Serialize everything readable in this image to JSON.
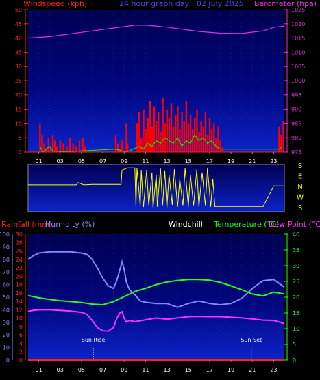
{
  "header": {
    "windspeed_label": "Windspeed (kph)",
    "title": "24 hour graph day : 02 July 2025",
    "barometer_label": "Barometer (hpa)"
  },
  "lower_header": {
    "rainfall_label": "Rainfall (mm)",
    "humidity_label": "Humidity (%)",
    "windchill_label": "Windchill",
    "temperature_label": "Temperature (°C)",
    "dewpoint_label": "Dew Point (°C)"
  },
  "annotations": {
    "sunrise": "Sun Rise",
    "sunset": "Sun Set"
  },
  "colors": {
    "windspeed": "#ff0000",
    "gust": "#00ff00",
    "direction": "#ffff00",
    "barometer": "#dd33dd",
    "humidity": "#8888ff",
    "temperature": "#22ff22",
    "dewpoint": "#ff33ff",
    "rainfall": "#ff2020",
    "axis_red": "#ff2020",
    "axis_violet": "#8888ff",
    "axis_green": "#22ff22",
    "background_top": "#000066",
    "background_bottom": "#0a1bb8"
  },
  "chart_data": [
    {
      "type": "line",
      "id": "wind-pressure",
      "x_ticks": [
        "01",
        "03",
        "05",
        "07",
        "09",
        "11",
        "13",
        "15",
        "17",
        "19",
        "21",
        "23"
      ],
      "x_range_hours": [
        0,
        24
      ],
      "left_axis": {
        "ticks": [
          "0",
          "5",
          "10",
          "15",
          "20",
          "25",
          "30",
          "35",
          "40",
          "45",
          "50"
        ],
        "ylim": [
          0,
          50
        ]
      },
      "right_axis": {
        "ticks": [
          "975",
          "980",
          "985",
          "990",
          "995",
          "1000",
          "1005",
          "1010",
          "1015",
          "1020",
          "1025"
        ],
        "ylim": [
          975,
          1025
        ]
      },
      "series": [
        {
          "key": "barometer",
          "axis": "right",
          "x": [
            0,
            2,
            4,
            6,
            8,
            10,
            11,
            12,
            13,
            14,
            16,
            18,
            20,
            22,
            23,
            24
          ],
          "y": [
            1015,
            1015.5,
            1016.5,
            1017.5,
            1018.5,
            1019.5,
            1019.5,
            1019.2,
            1018.8,
            1018.3,
            1017.3,
            1016.7,
            1016.6,
            1017.5,
            1018.7,
            1019.2
          ]
        },
        {
          "key": "windspeed",
          "axis": "left",
          "x": [
            1.1,
            1.3,
            1.5,
            1.7,
            1.9,
            2.1,
            2.3,
            2.5,
            2.7,
            3.0,
            3.3,
            3.6,
            3.9,
            4.2,
            4.5,
            4.8,
            5.1,
            5.3,
            8.2,
            8.4,
            8.6,
            8.8,
            9.2,
            9.3,
            10.2,
            10.4,
            10.6,
            10.8,
            11.0,
            11.2,
            11.4,
            11.6,
            11.8,
            12.0,
            12.2,
            12.4,
            12.6,
            12.8,
            13.0,
            13.2,
            13.4,
            13.6,
            13.8,
            14.0,
            14.2,
            14.4,
            14.6,
            14.8,
            15.0,
            15.2,
            15.4,
            15.6,
            15.8,
            16.0,
            16.2,
            16.4,
            16.6,
            16.8,
            17.0,
            17.2,
            17.4,
            17.6,
            17.8,
            18.0,
            18.2,
            23.5,
            23.7,
            23.9
          ],
          "y": [
            10,
            6,
            3,
            1,
            5,
            2,
            6,
            4,
            2,
            4,
            3,
            2,
            5,
            3,
            2,
            4,
            5,
            2,
            6,
            3,
            1,
            4,
            10,
            3,
            10,
            14,
            5,
            15,
            8,
            12,
            18,
            9,
            16,
            11,
            14,
            7,
            19,
            10,
            15,
            12,
            17,
            9,
            13,
            16,
            8,
            14,
            11,
            18,
            10,
            13,
            8,
            12,
            15,
            7,
            11,
            9,
            14,
            6,
            12,
            8,
            10,
            5,
            9,
            4,
            2,
            9,
            6,
            11
          ]
        },
        {
          "key": "gust",
          "axis": "left",
          "x": [
            1.1,
            1.4,
            1.7,
            2.0,
            2.4,
            8.2,
            9.2,
            10.4,
            10.8,
            11.2,
            11.6,
            12.0,
            12.4,
            12.8,
            13.2,
            13.6,
            14.0,
            14.4,
            14.8,
            15.2,
            15.6,
            16.0,
            16.4,
            16.8,
            17.2,
            17.6,
            18.0,
            23.5,
            23.8
          ],
          "y": [
            2,
            0,
            1,
            2,
            0,
            1,
            0,
            2,
            1,
            3,
            2,
            4,
            3,
            5,
            4,
            3,
            5,
            2,
            4,
            3,
            6,
            4,
            5,
            3,
            4,
            2,
            1,
            1,
            2
          ]
        }
      ]
    },
    {
      "type": "line",
      "id": "wind-direction",
      "y_ticks": [
        "S",
        "E",
        "N",
        "W",
        "S"
      ],
      "x_range_hours": [
        0,
        24
      ],
      "series": [
        {
          "key": "direction",
          "x": [
            0,
            1.5,
            2.5,
            3.5,
            4.5,
            4.7,
            5.2,
            6,
            7,
            8,
            8.7,
            8.8,
            9.0,
            9.3,
            9.5,
            10.0,
            10.1,
            10.2,
            10.5,
            10.6,
            10.8,
            11.1,
            11.3,
            11.6,
            11.7,
            12.0,
            12.1,
            12.4,
            12.6,
            12.8,
            13.0,
            13.2,
            13.5,
            13.7,
            14.0,
            14.2,
            14.5,
            14.7,
            15.0,
            15.2,
            15.5,
            15.8,
            16.0,
            16.3,
            16.6,
            16.8,
            17.1,
            17.3,
            17.5,
            17.8,
            18.0,
            19,
            20,
            21,
            22,
            22.7,
            23,
            23.5,
            24
          ],
          "y": [
            0.43,
            0.43,
            0.43,
            0.43,
            0.43,
            0.38,
            0.43,
            0.42,
            0.42,
            0.42,
            0.42,
            0.1,
            0.08,
            0.05,
            0.05,
            0.05,
            0.92,
            0.05,
            0.9,
            0.1,
            0.94,
            0.1,
            0.9,
            0.15,
            0.95,
            0.2,
            0.92,
            0.05,
            0.9,
            0.12,
            0.95,
            0.2,
            0.88,
            0.08,
            0.92,
            0.3,
            0.9,
            0.05,
            0.92,
            0.2,
            0.9,
            0.08,
            0.93,
            0.15,
            0.9,
            0.05,
            0.92,
            0.3,
            0.92,
            0.92,
            0.92,
            0.92,
            0.92,
            0.92,
            0.92,
            0.6,
            0.45,
            0.45,
            0.45
          ]
        }
      ]
    },
    {
      "type": "line",
      "id": "temperature-humidity",
      "x_ticks": [
        "01",
        "03",
        "05",
        "07",
        "09",
        "11",
        "13",
        "15",
        "17",
        "19",
        "21",
        "23"
      ],
      "x_range_hours": [
        0,
        24
      ],
      "humidity_axis": {
        "ticks": [
          "0",
          "10",
          "20",
          "30",
          "40",
          "50",
          "60",
          "70",
          "80",
          "90",
          "100"
        ],
        "ylim": [
          0,
          100
        ]
      },
      "rainfall_axis": {
        "ticks": [
          "0",
          "2",
          "4",
          "6",
          "8",
          "10",
          "12",
          "14",
          "16",
          "18",
          "20",
          "22",
          "24",
          "26",
          "28",
          "30"
        ],
        "ylim": [
          0,
          30
        ]
      },
      "temperature_axis": {
        "ticks": [
          "0",
          "5",
          "10",
          "15",
          "20",
          "25",
          "30",
          "35",
          "40"
        ],
        "ylim": [
          0,
          40
        ]
      },
      "series": [
        {
          "key": "humidity",
          "axis": "humidity",
          "x": [
            0,
            0.5,
            1,
            2,
            3,
            4,
            5,
            5.5,
            6,
            6.5,
            7,
            7.5,
            8,
            8.3,
            8.6,
            8.8,
            9,
            9.2,
            9.5,
            10,
            10.5,
            11,
            12,
            13,
            14,
            15,
            16,
            17,
            18,
            19,
            20,
            21,
            22,
            23,
            23.5,
            24
          ],
          "y": [
            80,
            83,
            85,
            86,
            86,
            86,
            85,
            84,
            80,
            73,
            65,
            59,
            57,
            63,
            72,
            78,
            72,
            62,
            56,
            52,
            47,
            46,
            45,
            45,
            42,
            45,
            47,
            45,
            44,
            45,
            49,
            57,
            63,
            64,
            61,
            58
          ]
        },
        {
          "key": "temperature",
          "axis": "temperature",
          "x": [
            0,
            1,
            2,
            3,
            4,
            5,
            6,
            7,
            8,
            9,
            10,
            11,
            12,
            13,
            14,
            15,
            16,
            17,
            18,
            19,
            20,
            21,
            22,
            23,
            24
          ],
          "y": [
            20.5,
            19.8,
            19.3,
            18.9,
            18.6,
            18.3,
            17.8,
            17.6,
            18.6,
            20.2,
            21.8,
            22.8,
            24.0,
            24.8,
            25.3,
            25.6,
            25.6,
            25.4,
            24.7,
            23.6,
            22.4,
            21.0,
            20.4,
            21.6,
            21.0
          ]
        },
        {
          "key": "dewpoint",
          "axis": "temperature",
          "x": [
            0,
            0.5,
            1,
            2,
            3,
            4,
            5,
            5.5,
            6,
            6.5,
            7,
            7.5,
            8,
            8.3,
            8.6,
            8.8,
            9,
            9.2,
            9.5,
            10,
            11,
            12,
            13,
            14,
            15,
            16,
            17,
            18,
            19,
            20,
            21,
            22,
            23,
            24
          ],
          "y": [
            15.5,
            15.8,
            16.0,
            16.0,
            15.8,
            15.6,
            15.2,
            14.6,
            12.6,
            10.3,
            9.3,
            9.2,
            10.4,
            13.2,
            15.0,
            15.4,
            13.3,
            12.1,
            12.6,
            12.2,
            12.8,
            13.4,
            13.0,
            13.4,
            13.8,
            13.9,
            13.8,
            13.8,
            13.6,
            13.4,
            13.1,
            12.7,
            12.6,
            11.6
          ]
        },
        {
          "key": "rainfall",
          "axis": "rainfall",
          "x": [
            0,
            24
          ],
          "y": [
            0,
            0
          ]
        }
      ],
      "markers": [
        {
          "key": "sunrise",
          "x": 6.1
        },
        {
          "key": "sunset",
          "x": 20.9
        }
      ]
    }
  ]
}
